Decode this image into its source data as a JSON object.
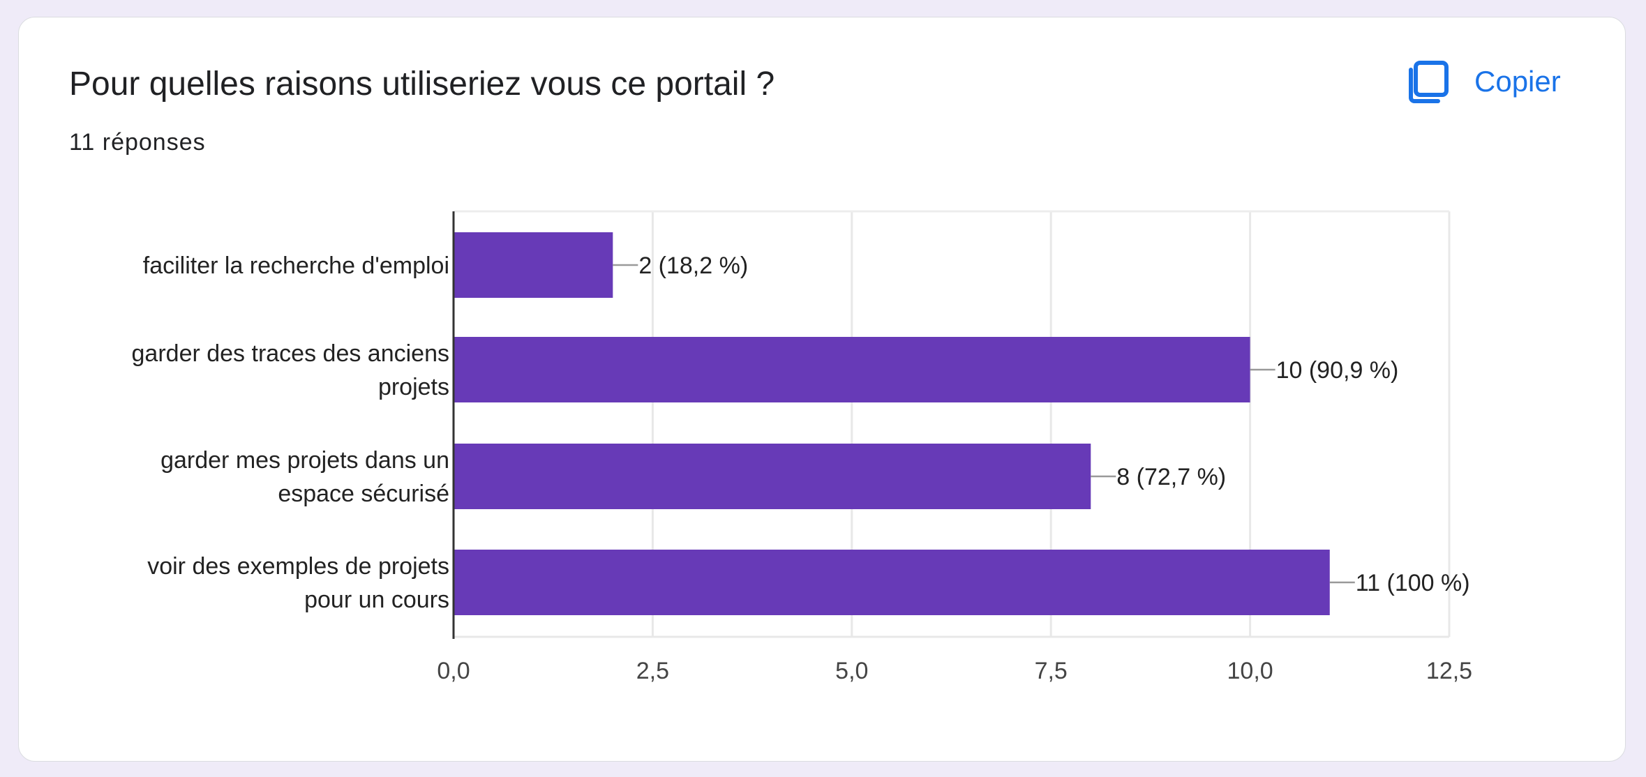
{
  "question": {
    "title": "Pour quelles raisons utiliseriez vous ce portail ?",
    "responses_label": "11 réponses"
  },
  "copy_button": {
    "label": "Copier",
    "icon": "copy-icon",
    "color": "#1a73e8"
  },
  "chart_data": {
    "type": "bar",
    "orientation": "horizontal",
    "categories": [
      "faciliter la recherche d'emploi",
      "garder des traces des anciens projets",
      "garder mes projets dans un espace sécurisé",
      "voir des exemples de projets pour un cours"
    ],
    "category_lines": [
      [
        "faciliter la recherche d'emploi"
      ],
      [
        "garder des traces des anciens",
        "projets"
      ],
      [
        "garder mes projets dans un",
        "espace sécurisé"
      ],
      [
        "voir des exemples de projets",
        "pour un cours"
      ]
    ],
    "values": [
      2,
      10,
      8,
      11
    ],
    "data_labels": [
      "2 (18,2 %)",
      "10 (90,9 %)",
      "8 (72,7 %)",
      "11 (100 %)"
    ],
    "xlim": [
      0,
      12.5
    ],
    "xticks": [
      0,
      2.5,
      5,
      7.5,
      10,
      12.5
    ],
    "xtick_labels": [
      "0,0",
      "2,5",
      "5,0",
      "7,5",
      "10,0",
      "12,5"
    ],
    "grid": true,
    "bar_color": "#673ab7"
  }
}
